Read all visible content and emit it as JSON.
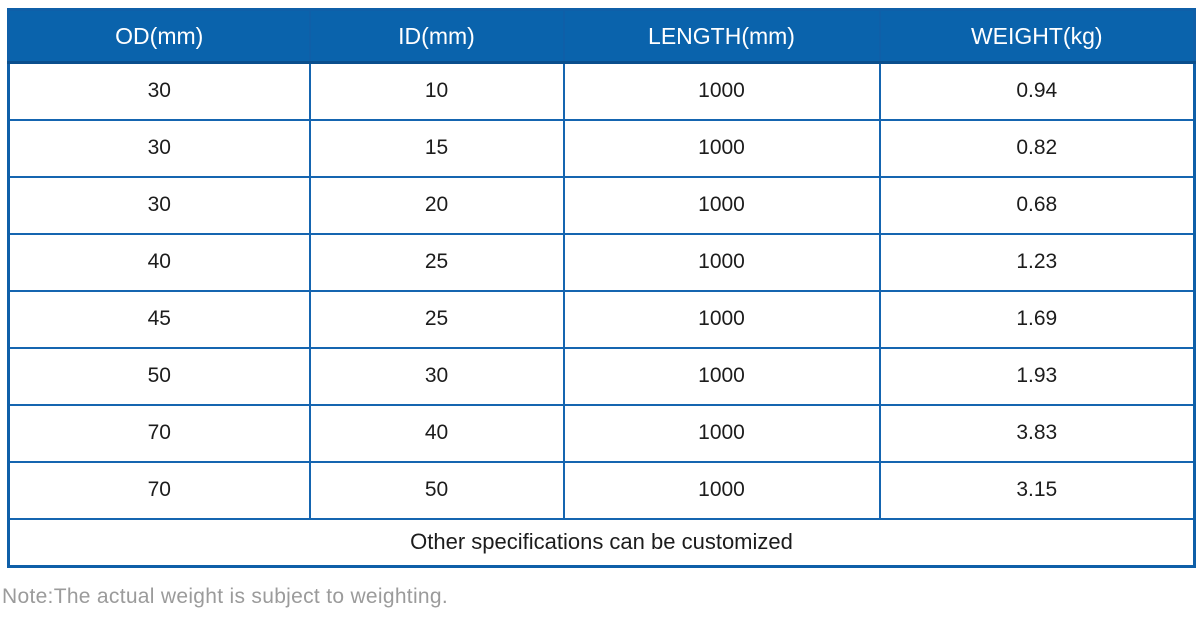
{
  "colors": {
    "header_bg": "#0a63ac",
    "header_text": "#ffffff",
    "border": "#1565b0",
    "cell_text": "#1c1c1c",
    "note_text": "#9b9b9b"
  },
  "table": {
    "headers": [
      "OD(mm)",
      "ID(mm)",
      "LENGTH(mm)",
      "WEIGHT(kg)"
    ],
    "rows": [
      [
        "30",
        "10",
        "1000",
        "0.94"
      ],
      [
        "30",
        "15",
        "1000",
        "0.82"
      ],
      [
        "30",
        "20",
        "1000",
        "0.68"
      ],
      [
        "40",
        "25",
        "1000",
        "1.23"
      ],
      [
        "45",
        "25",
        "1000",
        "1.69"
      ],
      [
        "50",
        "30",
        "1000",
        "1.93"
      ],
      [
        "70",
        "40",
        "1000",
        "3.83"
      ],
      [
        "70",
        "50",
        "1000",
        "3.15"
      ]
    ],
    "footer": "Other specifications can be customized"
  },
  "note": "Note:The actual weight is subject to weighting."
}
